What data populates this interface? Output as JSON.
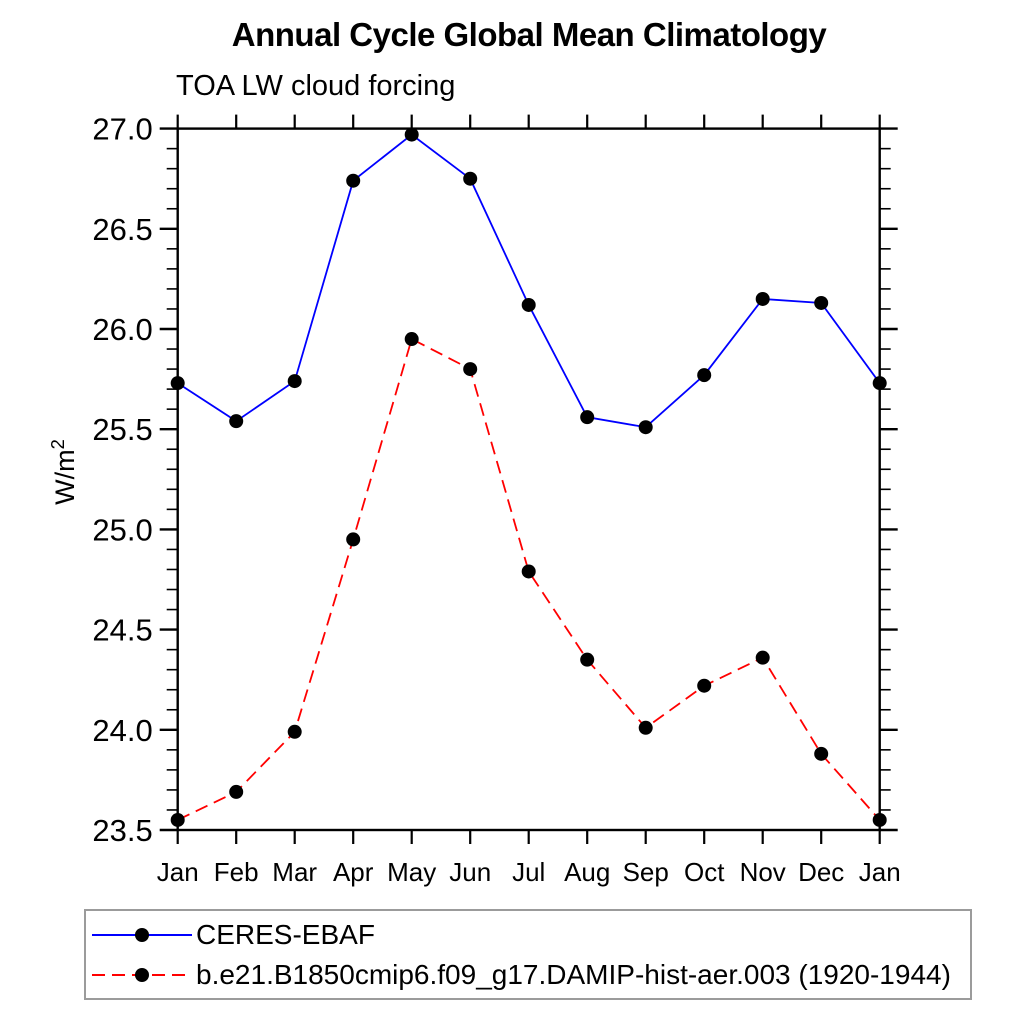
{
  "chart_data": {
    "type": "line",
    "title": "Annual Cycle Global Mean Climatology",
    "subtitle": "TOA LW cloud forcing",
    "ylabel": "W/m^2",
    "ylabel_parts": {
      "base": "W/m",
      "sup": "2"
    },
    "xlabel": "",
    "categories": [
      "Jan",
      "Feb",
      "Mar",
      "Apr",
      "May",
      "Jun",
      "Jul",
      "Aug",
      "Sep",
      "Oct",
      "Nov",
      "Dec",
      "Jan"
    ],
    "ylim": [
      23.5,
      27.0
    ],
    "ytick_major_interval": 0.5,
    "ytick_minor_interval": 0.1,
    "ytick_labels": [
      "23.5",
      "24.0",
      "24.5",
      "25.0",
      "25.5",
      "26.0",
      "26.5",
      "27.0"
    ],
    "grid": false,
    "legend": {
      "position": "bottom-left",
      "border": true
    },
    "series": [
      {
        "name": "CERES-EBAF",
        "color": "#0000ff",
        "line_style": "solid",
        "marker": "filled-circle",
        "marker_color": "#000000",
        "values": [
          25.73,
          25.54,
          25.74,
          26.74,
          26.97,
          26.75,
          26.12,
          25.56,
          25.51,
          25.77,
          26.15,
          26.13,
          25.73
        ]
      },
      {
        "name": "b.e21.B1850cmip6.f09_g17.DAMIP-hist-aer.003 (1920-1944)",
        "color": "#ff0000",
        "line_style": "dashed",
        "marker": "filled-circle",
        "marker_color": "#000000",
        "values": [
          23.55,
          23.69,
          23.99,
          24.95,
          25.95,
          25.8,
          24.79,
          24.35,
          24.01,
          24.22,
          24.36,
          23.88,
          23.55
        ]
      }
    ]
  }
}
